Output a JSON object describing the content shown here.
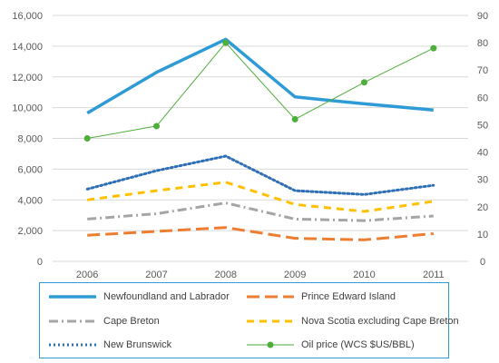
{
  "chart_data": {
    "type": "line",
    "categories": [
      "2006",
      "2007",
      "2008",
      "2009",
      "2010",
      "2011"
    ],
    "left_axis": {
      "ylim": [
        0,
        16000
      ],
      "ticks": [
        "0",
        "2,000",
        "4,000",
        "6,000",
        "8,000",
        "10,000",
        "12,000",
        "14,000",
        "16,000"
      ]
    },
    "right_axis": {
      "ylim": [
        0,
        90
      ],
      "ticks": [
        "0",
        "10",
        "20",
        "30",
        "40",
        "50",
        "60",
        "70",
        "80",
        "90"
      ]
    },
    "grid": true,
    "legend_position": "bottom",
    "series": [
      {
        "name": "Newfoundland and Labrador",
        "axis": "left",
        "values": [
          9650,
          12300,
          14450,
          10700,
          10250,
          9850
        ],
        "color": "#2e9bd6",
        "style": "solid",
        "width": 3.5
      },
      {
        "name": "Prince Edward Island",
        "axis": "left",
        "values": [
          1700,
          1950,
          2200,
          1500,
          1400,
          1800
        ],
        "color": "#ed7d31",
        "style": "longdash",
        "width": 3
      },
      {
        "name": "Cape Breton",
        "axis": "left",
        "values": [
          2750,
          3100,
          3800,
          2750,
          2650,
          2950
        ],
        "color": "#a5a5a5",
        "style": "dashdot",
        "width": 3
      },
      {
        "name": "Nova Scotia excluding Cape Breton",
        "axis": "left",
        "values": [
          4000,
          4600,
          5150,
          3700,
          3250,
          3900
        ],
        "color": "#ffc000",
        "style": "dash",
        "width": 3
      },
      {
        "name": "New Brunswick",
        "axis": "left",
        "values": [
          4700,
          5900,
          6850,
          4600,
          4350,
          4950
        ],
        "color": "#2f6fb5",
        "style": "dot",
        "width": 3
      },
      {
        "name": "Oil price (WCS $US/BBL)",
        "axis": "right",
        "values": [
          45,
          49.5,
          80,
          52,
          65.5,
          78
        ],
        "color": "#4eae3a",
        "style": "solid-marker",
        "width": 1
      }
    ]
  }
}
